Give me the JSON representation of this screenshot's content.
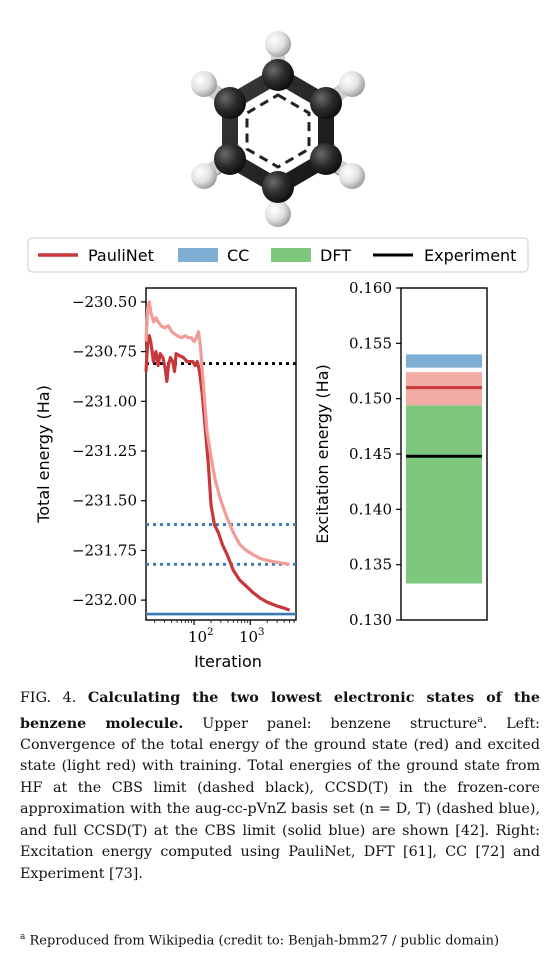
{
  "legend": {
    "items": [
      {
        "label": "PauliNet",
        "color": "#c8373a",
        "kind": "line"
      },
      {
        "label": "CC",
        "color": "#7eaed3",
        "kind": "patch"
      },
      {
        "label": "DFT",
        "color": "#7ec87e",
        "kind": "patch"
      },
      {
        "label": "Experiment",
        "color": "#000000",
        "kind": "line"
      }
    ]
  },
  "chart_data": [
    {
      "type": "line",
      "xlabel": "Iteration",
      "ylabel": "Total energy (Ha)",
      "xscale": "log",
      "xlim": [
        14,
        6500
      ],
      "ylim": [
        -232.1,
        -230.43
      ],
      "xtick_labels": [
        "10",
        "2",
        "10",
        "3"
      ],
      "yticks": [
        -230.5,
        -230.75,
        -231.0,
        -231.25,
        -231.5,
        -231.75,
        -232.0
      ],
      "ytick_labels": [
        "−230.50",
        "−230.75",
        "−231.00",
        "−231.25",
        "−231.50",
        "−231.75",
        "−232.00"
      ],
      "grid": false,
      "series": [
        {
          "color": "#c8373a",
          "points": [
            [
              14,
              -230.85
            ],
            [
              15,
              -230.7
            ],
            [
              16,
              -230.67
            ],
            [
              17,
              -230.7
            ],
            [
              19,
              -230.8
            ],
            [
              21,
              -230.75
            ],
            [
              23,
              -230.82
            ],
            [
              25,
              -230.76
            ],
            [
              28,
              -230.78
            ],
            [
              31,
              -230.84
            ],
            [
              33,
              -230.9
            ],
            [
              35,
              -230.82
            ],
            [
              38,
              -230.78
            ],
            [
              42,
              -230.8
            ],
            [
              45,
              -230.85
            ],
            [
              48,
              -230.76
            ],
            [
              55,
              -230.77
            ],
            [
              65,
              -230.78
            ],
            [
              75,
              -230.8
            ],
            [
              85,
              -230.8
            ],
            [
              95,
              -230.8
            ],
            [
              105,
              -230.82
            ],
            [
              115,
              -230.8
            ],
            [
              125,
              -230.85
            ],
            [
              140,
              -230.96
            ],
            [
              160,
              -231.15
            ],
            [
              180,
              -231.32
            ],
            [
              200,
              -231.52
            ],
            [
              230,
              -231.62
            ],
            [
              270,
              -231.66
            ],
            [
              320,
              -231.72
            ],
            [
              400,
              -231.78
            ],
            [
              500,
              -231.85
            ],
            [
              650,
              -231.9
            ],
            [
              850,
              -231.93
            ],
            [
              1100,
              -231.96
            ],
            [
              1500,
              -231.99
            ],
            [
              2000,
              -232.01
            ],
            [
              3000,
              -232.03
            ],
            [
              4000,
              -232.04
            ],
            [
              5000,
              -232.05
            ]
          ]
        },
        {
          "color": "#f19c97",
          "points": [
            [
              14,
              -230.7
            ],
            [
              15,
              -230.53
            ],
            [
              16,
              -230.5
            ],
            [
              17,
              -230.55
            ],
            [
              19,
              -230.6
            ],
            [
              21,
              -230.58
            ],
            [
              23,
              -230.6
            ],
            [
              26,
              -230.62
            ],
            [
              30,
              -230.63
            ],
            [
              35,
              -230.62
            ],
            [
              40,
              -230.65
            ],
            [
              50,
              -230.67
            ],
            [
              60,
              -230.68
            ],
            [
              70,
              -230.67
            ],
            [
              80,
              -230.68
            ],
            [
              90,
              -230.68
            ],
            [
              100,
              -230.7
            ],
            [
              110,
              -230.68
            ],
            [
              120,
              -230.65
            ],
            [
              130,
              -230.72
            ],
            [
              150,
              -230.95
            ],
            [
              170,
              -231.15
            ],
            [
              200,
              -231.28
            ],
            [
              240,
              -231.4
            ],
            [
              300,
              -231.5
            ],
            [
              380,
              -231.58
            ],
            [
              500,
              -231.66
            ],
            [
              650,
              -231.72
            ],
            [
              850,
              -231.75
            ],
            [
              1100,
              -231.77
            ],
            [
              1500,
              -231.79
            ],
            [
              2000,
              -231.8
            ],
            [
              3000,
              -231.81
            ],
            [
              5000,
              -231.82
            ]
          ]
        }
      ],
      "hlines": [
        {
          "value": -230.81,
          "color": "#000000",
          "style": "dotted"
        },
        {
          "value": -231.62,
          "color": "#3a7ab5",
          "style": "dotted"
        },
        {
          "value": -231.82,
          "color": "#3a7ab5",
          "style": "dotted"
        },
        {
          "value": -232.07,
          "color": "#3a7ab5",
          "style": "solid"
        }
      ]
    },
    {
      "type": "bar",
      "ylabel": "Excitation energy (Ha)",
      "ylim": [
        0.13,
        0.16
      ],
      "yticks": [
        0.13,
        0.135,
        0.14,
        0.145,
        0.15,
        0.155,
        0.16
      ],
      "ytick_labels": [
        "0.130",
        "0.135",
        "0.140",
        "0.145",
        "0.150",
        "0.155",
        "0.160"
      ],
      "bands": [
        {
          "series": "CC",
          "from": 0.1528,
          "to": 0.154,
          "color": "#7eaed3"
        },
        {
          "series": "DFT",
          "from": 0.1333,
          "to": 0.1494,
          "color": "#7ec87e"
        },
        {
          "series": "PauliNet",
          "from": 0.1494,
          "to": 0.1524,
          "color": "#f19c97",
          "alpha": 0.85
        }
      ],
      "lines": [
        {
          "series": "PauliNet",
          "value": 0.151,
          "color": "#c8373a"
        },
        {
          "series": "Experiment",
          "value": 0.1448,
          "color": "#000000"
        }
      ]
    }
  ],
  "caption": {
    "label": "FIG. 4.",
    "title": "Calculating the two lowest electronic states of the benzene molecule.",
    "text": "Upper panel: benzene structure",
    "sup": "a",
    "text2": ". Left: Convergence of the total energy of the ground state (red) and excited state (light red) with training. Total energies of the ground state from HF at the CBS limit (dashed black), CCSD(T) in the frozen-core approximation with the aug-cc-pVnZ basis set (n = D, T) (dashed blue), and full CCSD(T) at the CBS limit (solid blue) are shown [42]. Right: Excitation energy computed using PauliNet, DFT [61], CC [72] and Experiment [73]."
  },
  "footnote": {
    "mark": "a",
    "text": "Reproduced from Wikipedia (credit to: Benjah-bmm27 / public domain)"
  }
}
